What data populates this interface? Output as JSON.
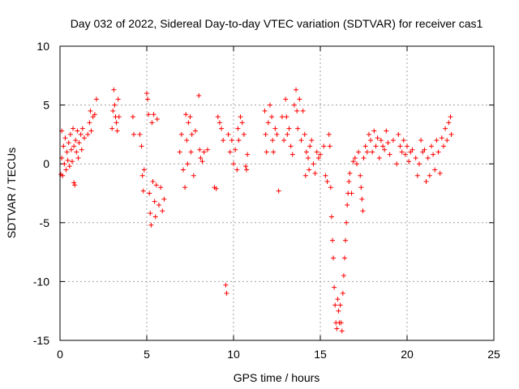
{
  "chart_data": {
    "type": "scatter",
    "title": "Day 032 of 2022, Sidereal Day-to-day VTEC variation (SDTVAR) for receiver cas1",
    "xlabel": "GPS time / hours",
    "ylabel": "SDTVAR / TECUs",
    "xlim": [
      0,
      25
    ],
    "ylim": [
      -15,
      10
    ],
    "xticks": [
      0,
      5,
      10,
      15,
      20,
      25
    ],
    "yticks": [
      -15,
      -10,
      -5,
      0,
      5,
      10
    ],
    "xtick_labels": [
      "0",
      "5",
      "10",
      "15",
      "20",
      "25"
    ],
    "ytick_labels": [
      "-15",
      "-10",
      "-5",
      "0",
      "5",
      "10"
    ],
    "grid": true,
    "marker": "+",
    "color": "#ff0000",
    "series": [
      {
        "name": "SDTVAR",
        "points": [
          [
            0.05,
            -0.9
          ],
          [
            0.1,
            0.5
          ],
          [
            0.1,
            2.8
          ],
          [
            0.15,
            -1.0
          ],
          [
            0.2,
            1.5
          ],
          [
            0.25,
            0.0
          ],
          [
            0.3,
            2.2
          ],
          [
            0.35,
            -0.5
          ],
          [
            0.4,
            1.0
          ],
          [
            0.45,
            0.3
          ],
          [
            0.5,
            1.8
          ],
          [
            0.55,
            -0.2
          ],
          [
            0.6,
            2.5
          ],
          [
            0.65,
            1.2
          ],
          [
            0.7,
            0.2
          ],
          [
            0.75,
            3.0
          ],
          [
            0.8,
            1.5
          ],
          [
            0.8,
            -1.6
          ],
          [
            0.85,
            -1.8
          ],
          [
            0.9,
            2.0
          ],
          [
            0.95,
            1.0
          ],
          [
            1.0,
            2.8
          ],
          [
            1.05,
            0.5
          ],
          [
            1.1,
            1.8
          ],
          [
            1.2,
            2.5
          ],
          [
            1.25,
            1.2
          ],
          [
            1.3,
            3.0
          ],
          [
            1.4,
            2.2
          ],
          [
            1.6,
            2.5
          ],
          [
            1.7,
            3.5
          ],
          [
            1.75,
            4.5
          ],
          [
            1.8,
            2.8
          ],
          [
            1.9,
            4.0
          ],
          [
            2.0,
            4.2
          ],
          [
            2.1,
            5.5
          ],
          [
            3.0,
            3.0
          ],
          [
            3.05,
            4.5
          ],
          [
            3.1,
            6.3
          ],
          [
            3.15,
            5.0
          ],
          [
            3.2,
            4.0
          ],
          [
            3.25,
            3.5
          ],
          [
            3.3,
            2.8
          ],
          [
            3.35,
            5.5
          ],
          [
            3.4,
            4.0
          ],
          [
            4.2,
            4.0
          ],
          [
            4.25,
            2.5
          ],
          [
            4.6,
            2.5
          ],
          [
            4.7,
            1.5
          ],
          [
            4.75,
            -1.0
          ],
          [
            4.8,
            -2.3
          ],
          [
            4.85,
            -0.5
          ],
          [
            5.0,
            6.0
          ],
          [
            5.05,
            5.5
          ],
          [
            5.1,
            4.2
          ],
          [
            5.15,
            -2.5
          ],
          [
            5.2,
            -4.2
          ],
          [
            5.25,
            -5.2
          ],
          [
            5.3,
            3.5
          ],
          [
            5.35,
            -1.5
          ],
          [
            5.4,
            4.2
          ],
          [
            5.45,
            -3.2
          ],
          [
            5.5,
            -4.5
          ],
          [
            5.55,
            -1.8
          ],
          [
            5.6,
            3.8
          ],
          [
            5.7,
            -3.5
          ],
          [
            5.8,
            -2.0
          ],
          [
            5.9,
            -4.0
          ],
          [
            6.0,
            -3.0
          ],
          [
            6.9,
            1.0
          ],
          [
            7.0,
            2.5
          ],
          [
            7.1,
            -0.5
          ],
          [
            7.2,
            -2.0
          ],
          [
            7.25,
            4.2
          ],
          [
            7.3,
            2.0
          ],
          [
            7.35,
            0.0
          ],
          [
            7.4,
            3.5
          ],
          [
            7.5,
            4.0
          ],
          [
            7.55,
            1.0
          ],
          [
            7.6,
            2.5
          ],
          [
            7.7,
            -1.0
          ],
          [
            7.8,
            2.8
          ],
          [
            8.0,
            5.8
          ],
          [
            8.05,
            1.2
          ],
          [
            8.1,
            0.5
          ],
          [
            8.2,
            0.2
          ],
          [
            8.3,
            1.0
          ],
          [
            8.5,
            1.2
          ],
          [
            8.9,
            -2.0
          ],
          [
            9.0,
            -2.1
          ],
          [
            9.1,
            4.0
          ],
          [
            9.2,
            3.5
          ],
          [
            9.3,
            3.0
          ],
          [
            9.4,
            2.0
          ],
          [
            9.55,
            -10.3
          ],
          [
            9.6,
            -11.0
          ],
          [
            9.7,
            2.5
          ],
          [
            9.8,
            1.0
          ],
          [
            9.9,
            2.0
          ],
          [
            10.0,
            0.0
          ],
          [
            10.1,
            1.2
          ],
          [
            10.2,
            -0.5
          ],
          [
            10.25,
            3.0
          ],
          [
            10.3,
            2.0
          ],
          [
            10.4,
            4.0
          ],
          [
            10.5,
            3.5
          ],
          [
            10.6,
            2.5
          ],
          [
            10.7,
            -0.2
          ],
          [
            10.75,
            -0.5
          ],
          [
            10.8,
            0.8
          ],
          [
            11.8,
            4.5
          ],
          [
            11.85,
            2.5
          ],
          [
            11.9,
            1.0
          ],
          [
            12.0,
            3.5
          ],
          [
            12.1,
            5.0
          ],
          [
            12.2,
            4.0
          ],
          [
            12.25,
            2.0
          ],
          [
            12.3,
            1.0
          ],
          [
            12.4,
            3.0
          ],
          [
            12.5,
            2.5
          ],
          [
            12.6,
            -2.3
          ],
          [
            12.8,
            4.0
          ],
          [
            12.9,
            2.0
          ],
          [
            13.0,
            5.5
          ],
          [
            13.05,
            4.0
          ],
          [
            13.1,
            2.5
          ],
          [
            13.2,
            3.0
          ],
          [
            13.3,
            1.5
          ],
          [
            13.4,
            0.8
          ],
          [
            13.5,
            5.0
          ],
          [
            13.6,
            6.3
          ],
          [
            13.65,
            4.5
          ],
          [
            13.7,
            3.0
          ],
          [
            13.8,
            5.5
          ],
          [
            13.9,
            2.0
          ],
          [
            14.0,
            4.5
          ],
          [
            14.1,
            2.5
          ],
          [
            14.15,
            -1.0
          ],
          [
            14.2,
            1.0
          ],
          [
            14.3,
            0.5
          ],
          [
            14.35,
            -0.5
          ],
          [
            14.4,
            1.5
          ],
          [
            14.5,
            2.0
          ],
          [
            14.6,
            0.0
          ],
          [
            14.7,
            -0.8
          ],
          [
            14.8,
            1.0
          ],
          [
            14.9,
            0.5
          ],
          [
            15.0,
            0.8
          ],
          [
            15.2,
            1.5
          ],
          [
            15.3,
            -1.0
          ],
          [
            15.4,
            -1.5
          ],
          [
            15.5,
            2.5
          ],
          [
            15.55,
            1.5
          ],
          [
            15.6,
            -2.0
          ],
          [
            15.65,
            -4.5
          ],
          [
            15.7,
            -6.5
          ],
          [
            15.75,
            -8.0
          ],
          [
            15.8,
            -10.5
          ],
          [
            15.85,
            -12.0
          ],
          [
            15.9,
            -13.5
          ],
          [
            15.95,
            -14.0
          ],
          [
            16.0,
            -11.5
          ],
          [
            16.05,
            -12.5
          ],
          [
            16.1,
            -13.5
          ],
          [
            16.15,
            -12.0
          ],
          [
            16.2,
            -13.5
          ],
          [
            16.25,
            -14.2
          ],
          [
            16.3,
            -11.0
          ],
          [
            16.35,
            -9.5
          ],
          [
            16.4,
            -8.0
          ],
          [
            16.45,
            -6.5
          ],
          [
            16.5,
            -5.0
          ],
          [
            16.55,
            -3.5
          ],
          [
            16.6,
            -2.5
          ],
          [
            16.65,
            -1.5
          ],
          [
            16.7,
            -0.8
          ],
          [
            16.8,
            -2.5
          ],
          [
            16.9,
            0.2
          ],
          [
            17.0,
            0.5
          ],
          [
            17.1,
            0.0
          ],
          [
            17.2,
            1.0
          ],
          [
            17.3,
            -1.0
          ],
          [
            17.35,
            -2.0
          ],
          [
            17.4,
            -3.0
          ],
          [
            17.45,
            -4.0
          ],
          [
            17.5,
            0.5
          ],
          [
            17.6,
            1.5
          ],
          [
            17.7,
            1.0
          ],
          [
            17.8,
            2.5
          ],
          [
            17.9,
            2.0
          ],
          [
            18.0,
            1.0
          ],
          [
            18.1,
            2.8
          ],
          [
            18.2,
            1.5
          ],
          [
            18.3,
            2.2
          ],
          [
            18.4,
            0.5
          ],
          [
            18.5,
            2.0
          ],
          [
            18.6,
            1.5
          ],
          [
            18.7,
            1.2
          ],
          [
            18.8,
            2.8
          ],
          [
            18.9,
            1.8
          ],
          [
            19.0,
            0.8
          ],
          [
            19.2,
            2.0
          ],
          [
            19.4,
            0.0
          ],
          [
            19.5,
            2.5
          ],
          [
            19.6,
            1.5
          ],
          [
            19.7,
            1.0
          ],
          [
            19.8,
            2.0
          ],
          [
            19.9,
            0.8
          ],
          [
            20.0,
            1.5
          ],
          [
            20.1,
            0.2
          ],
          [
            20.2,
            1.0
          ],
          [
            20.3,
            1.2
          ],
          [
            20.5,
            0.5
          ],
          [
            20.6,
            -1.0
          ],
          [
            20.7,
            0.0
          ],
          [
            20.8,
            2.0
          ],
          [
            20.9,
            1.0
          ],
          [
            21.0,
            1.2
          ],
          [
            21.1,
            -1.5
          ],
          [
            21.2,
            0.5
          ],
          [
            21.3,
            -1.0
          ],
          [
            21.4,
            1.5
          ],
          [
            21.5,
            0.8
          ],
          [
            21.6,
            -0.5
          ],
          [
            21.7,
            2.0
          ],
          [
            21.8,
            1.0
          ],
          [
            21.9,
            -0.8
          ],
          [
            22.0,
            2.2
          ],
          [
            22.1,
            1.5
          ],
          [
            22.2,
            3.0
          ],
          [
            22.3,
            2.0
          ],
          [
            22.4,
            3.5
          ],
          [
            22.5,
            4.0
          ],
          [
            22.55,
            2.5
          ]
        ]
      }
    ]
  }
}
